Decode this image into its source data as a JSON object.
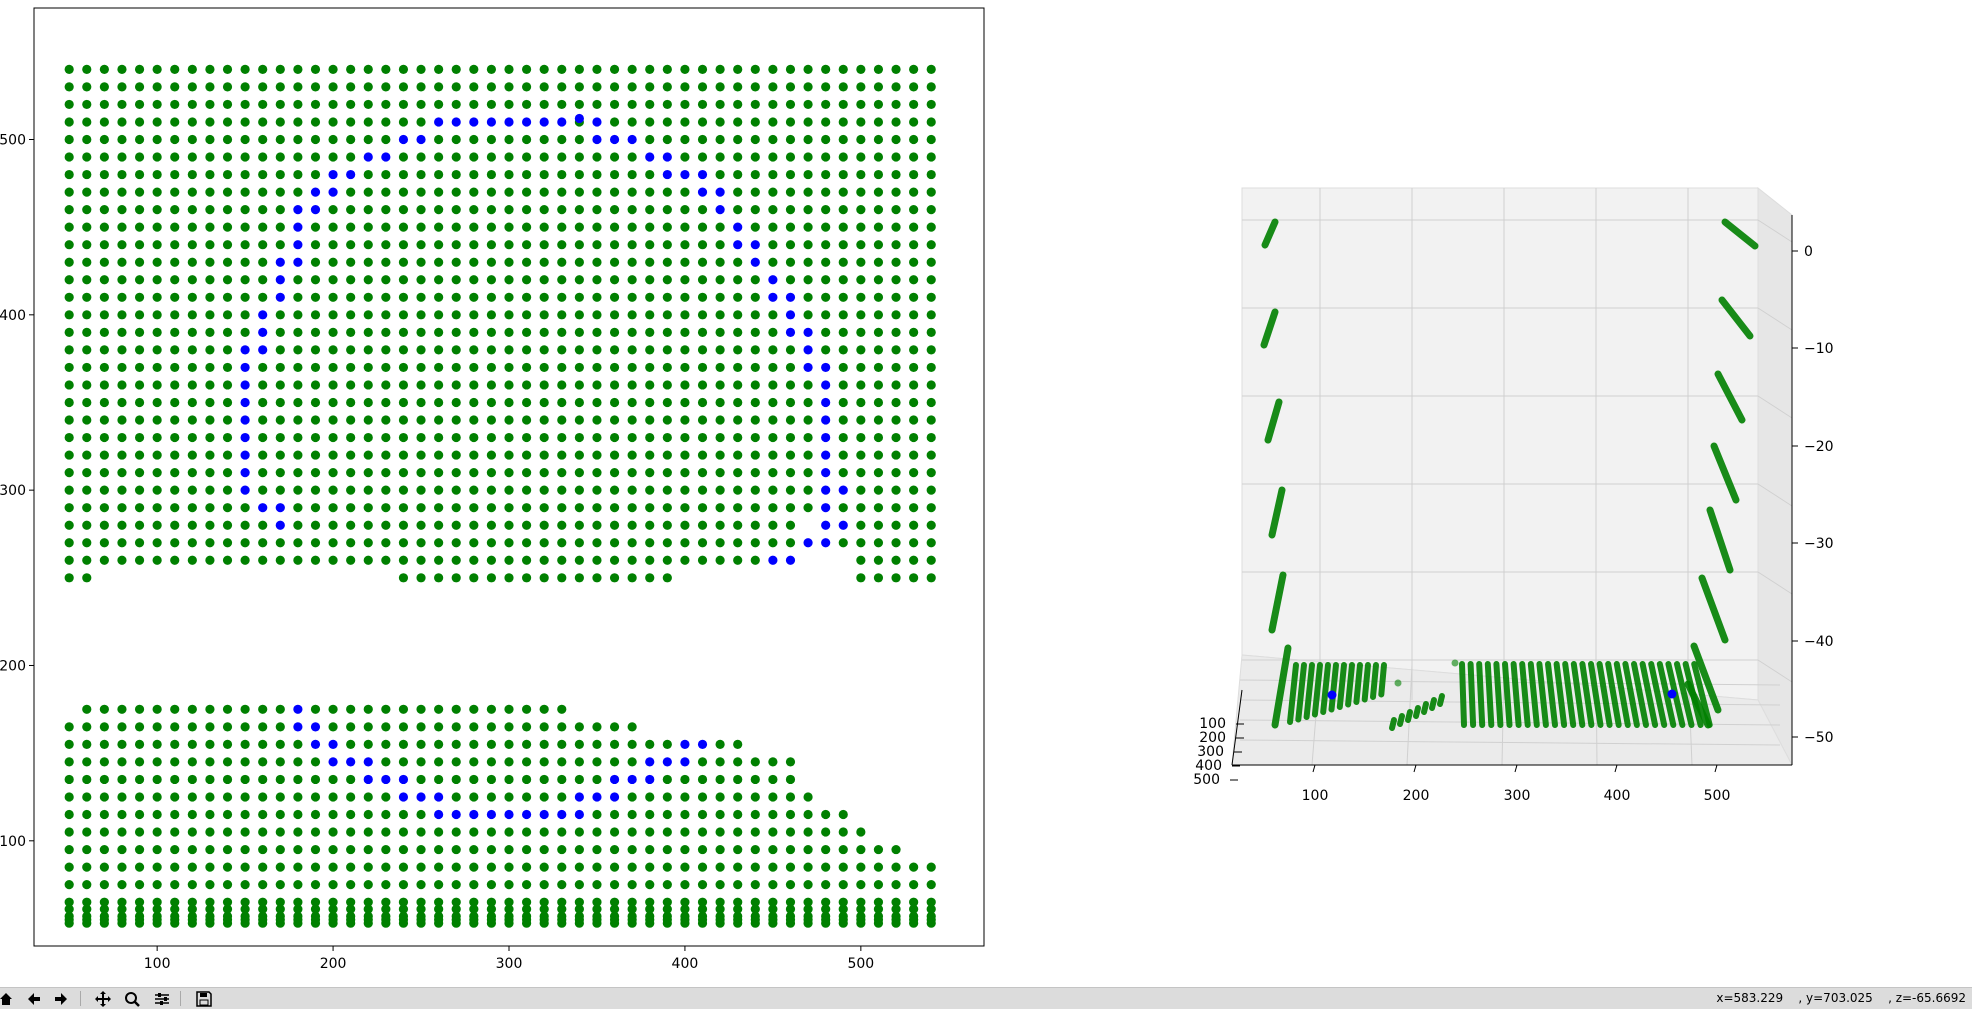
{
  "chart_data": [
    {
      "type": "scatter",
      "title": "",
      "xlabel": "",
      "ylabel": "",
      "xlim": [
        30,
        570
      ],
      "ylim": [
        40,
        575
      ],
      "xticks": [
        100,
        200,
        300,
        400,
        500
      ],
      "yticks": [
        100,
        200,
        300,
        400,
        500
      ],
      "ytick_labels": [
        "100",
        "200",
        "300",
        "400",
        "500"
      ],
      "grid": false,
      "series": [
        {
          "color": "#008000",
          "points_desc": "dense green grid of points filling x 50–540, y 50–540 except a gap between the lower band (y < 185) and upper band (y > 245)"
        },
        {
          "color": "#0000ff",
          "values": [
            [
              260,
              510
            ],
            [
              270,
              510
            ],
            [
              280,
              510
            ],
            [
              290,
              510
            ],
            [
              300,
              510
            ],
            [
              310,
              510
            ],
            [
              320,
              510
            ],
            [
              330,
              510
            ],
            [
              340,
              512
            ],
            [
              350,
              510
            ],
            [
              240,
              500
            ],
            [
              250,
              500
            ],
            [
              350,
              500
            ],
            [
              360,
              500
            ],
            [
              370,
              500
            ],
            [
              220,
              490
            ],
            [
              230,
              490
            ],
            [
              380,
              490
            ],
            [
              390,
              490
            ],
            [
              200,
              480
            ],
            [
              210,
              480
            ],
            [
              390,
              480
            ],
            [
              400,
              480
            ],
            [
              410,
              480
            ],
            [
              190,
              470
            ],
            [
              200,
              470
            ],
            [
              410,
              470
            ],
            [
              420,
              470
            ],
            [
              180,
              460
            ],
            [
              190,
              460
            ],
            [
              420,
              460
            ],
            [
              180,
              450
            ],
            [
              430,
              450
            ],
            [
              180,
              440
            ],
            [
              430,
              440
            ],
            [
              440,
              440
            ],
            [
              170,
              430
            ],
            [
              180,
              430
            ],
            [
              440,
              430
            ],
            [
              170,
              420
            ],
            [
              450,
              420
            ],
            [
              170,
              410
            ],
            [
              450,
              410
            ],
            [
              460,
              410
            ],
            [
              160,
              400
            ],
            [
              460,
              400
            ],
            [
              160,
              390
            ],
            [
              460,
              390
            ],
            [
              470,
              390
            ],
            [
              150,
              380
            ],
            [
              160,
              380
            ],
            [
              470,
              380
            ],
            [
              150,
              370
            ],
            [
              470,
              370
            ],
            [
              480,
              370
            ],
            [
              150,
              360
            ],
            [
              480,
              360
            ],
            [
              150,
              350
            ],
            [
              480,
              350
            ],
            [
              150,
              340
            ],
            [
              480,
              340
            ],
            [
              150,
              330
            ],
            [
              480,
              330
            ],
            [
              150,
              320
            ],
            [
              480,
              320
            ],
            [
              150,
              310
            ],
            [
              480,
              310
            ],
            [
              150,
              300
            ],
            [
              480,
              300
            ],
            [
              490,
              300
            ],
            [
              160,
              290
            ],
            [
              170,
              290
            ],
            [
              480,
              290
            ],
            [
              170,
              280
            ],
            [
              480,
              280
            ],
            [
              490,
              280
            ],
            [
              470,
              270
            ],
            [
              480,
              270
            ],
            [
              450,
              260
            ],
            [
              460,
              260
            ],
            [
              180,
              175
            ],
            [
              180,
              165
            ],
            [
              190,
              165
            ],
            [
              190,
              155
            ],
            [
              200,
              155
            ],
            [
              200,
              145
            ],
            [
              210,
              145
            ],
            [
              220,
              145
            ],
            [
              220,
              135
            ],
            [
              230,
              135
            ],
            [
              240,
              135
            ],
            [
              240,
              125
            ],
            [
              250,
              125
            ],
            [
              260,
              125
            ],
            [
              260,
              115
            ],
            [
              270,
              115
            ],
            [
              280,
              115
            ],
            [
              290,
              115
            ],
            [
              300,
              115
            ],
            [
              310,
              115
            ],
            [
              320,
              115
            ],
            [
              330,
              115
            ],
            [
              340,
              115
            ],
            [
              340,
              125
            ],
            [
              350,
              125
            ],
            [
              360,
              125
            ],
            [
              360,
              135
            ],
            [
              370,
              135
            ],
            [
              380,
              135
            ],
            [
              380,
              145
            ],
            [
              390,
              145
            ],
            [
              400,
              145
            ],
            [
              400,
              155
            ],
            [
              410,
              155
            ]
          ]
        }
      ]
    },
    {
      "type": "scatter",
      "title": "",
      "projection": "3d",
      "xticks": [
        "100",
        "200",
        "300",
        "400",
        "500"
      ],
      "yticks": [
        "100",
        "200",
        "300",
        "400",
        "500"
      ],
      "zticks": [
        "0",
        "−10",
        "−20",
        "−30",
        "−40",
        "−50"
      ],
      "series": [
        {
          "color": "#008000"
        },
        {
          "color": "#0000ff"
        }
      ]
    }
  ],
  "status": {
    "coords": "x=583.229    , y=703.025    , z=-65.6692"
  },
  "toolbar": {
    "buttons": [
      "home-icon",
      "back-icon",
      "forward-icon",
      "pan-icon",
      "zoom-icon",
      "configure-icon",
      "save-icon"
    ]
  }
}
